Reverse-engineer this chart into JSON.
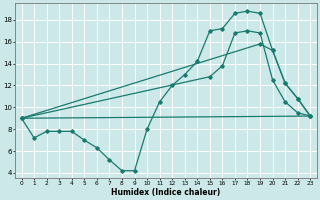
{
  "xlabel": "Humidex (Indice chaleur)",
  "bg_color": "#cce8e8",
  "line_color": "#1a7a6e",
  "grid_color": "#ffffff",
  "xlim": [
    -0.5,
    23.5
  ],
  "ylim": [
    3.5,
    19.5
  ],
  "xticks": [
    0,
    1,
    2,
    3,
    4,
    5,
    6,
    7,
    8,
    9,
    10,
    11,
    12,
    13,
    14,
    15,
    16,
    17,
    18,
    19,
    20,
    21,
    22,
    23
  ],
  "yticks": [
    4,
    6,
    8,
    10,
    12,
    14,
    16,
    18
  ],
  "line1_x": [
    0,
    1,
    2,
    3,
    4,
    5,
    6,
    7,
    8,
    9,
    10,
    11,
    12,
    13,
    14,
    15,
    16,
    17,
    18,
    19,
    20,
    21,
    22,
    23
  ],
  "line1_y": [
    9,
    7.2,
    7.8,
    7.8,
    7.8,
    7.0,
    6.3,
    5.2,
    4.2,
    4.2,
    8.0,
    10.5,
    12.0,
    13.0,
    14.2,
    17.0,
    17.2,
    18.6,
    18.8,
    18.6,
    15.2,
    12.2,
    10.8,
    9.2
  ],
  "line2_x": [
    0,
    23
  ],
  "line2_y": [
    9,
    9.2
  ],
  "line3_x": [
    0,
    19,
    20,
    21,
    22,
    23
  ],
  "line3_y": [
    9,
    15.8,
    15.2,
    12.2,
    10.8,
    9.2
  ],
  "line4_x": [
    0,
    15,
    16,
    17,
    18,
    19,
    20,
    21,
    22,
    23
  ],
  "line4_y": [
    9,
    12.8,
    13.8,
    16.8,
    17.0,
    16.8,
    12.5,
    10.5,
    9.5,
    9.2
  ]
}
